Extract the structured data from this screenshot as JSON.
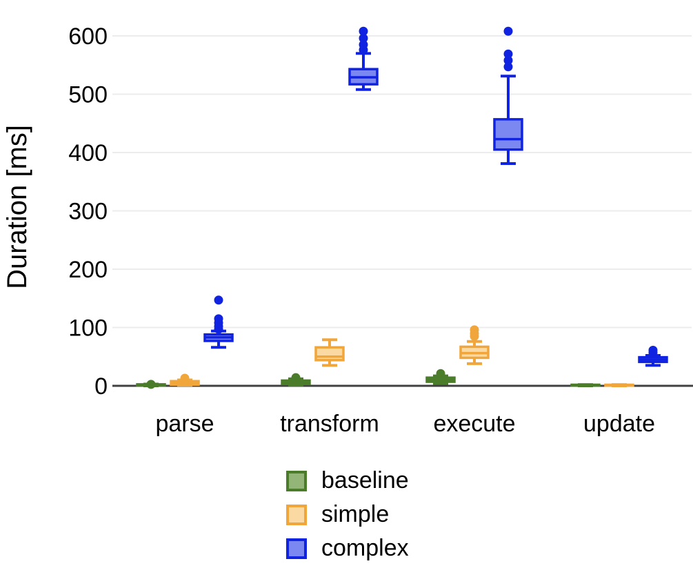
{
  "chart_data": {
    "type": "boxplot",
    "title": "",
    "ylabel": "Duration [ms]",
    "xlabel": "",
    "ylim": [
      0,
      640
    ],
    "yticks": [
      0,
      100,
      200,
      300,
      400,
      500,
      600
    ],
    "grid": "horizontal",
    "categories": [
      "parse",
      "transform",
      "execute",
      "update"
    ],
    "series": [
      {
        "name": "baseline",
        "border_color": "#4a7c2a",
        "fill_color": "#93b578",
        "boxes": [
          {
            "low": 0,
            "q1": 0.5,
            "median": 1.5,
            "q3": 2.5,
            "high": 3,
            "outliers": [
              2.5
            ]
          },
          {
            "low": 1,
            "q1": 3,
            "median": 5,
            "q3": 9,
            "high": 12,
            "outliers": [
              14
            ]
          },
          {
            "low": 4,
            "q1": 7,
            "median": 10,
            "q3": 14,
            "high": 17,
            "outliers": [
              21
            ]
          },
          {
            "low": 0,
            "q1": 0.3,
            "median": 1,
            "q3": 1.8,
            "high": 2,
            "outliers": []
          }
        ]
      },
      {
        "name": "simple",
        "border_color": "#f0a63a",
        "fill_color": "#fbd9a2",
        "boxes": [
          {
            "low": 1,
            "q1": 2,
            "median": 4.5,
            "q3": 8,
            "high": 10,
            "outliers": [
              13
            ]
          },
          {
            "low": 35,
            "q1": 44,
            "median": 50,
            "q3": 66,
            "high": 79,
            "outliers": []
          },
          {
            "low": 38,
            "q1": 48,
            "median": 56,
            "q3": 67,
            "high": 76,
            "outliers": [
              85,
              90,
              96
            ]
          },
          {
            "low": 0,
            "q1": 0.3,
            "median": 1,
            "q3": 1.8,
            "high": 2,
            "outliers": []
          }
        ]
      },
      {
        "name": "complex",
        "border_color": "#1023e0",
        "fill_color": "#7c88f2",
        "boxes": [
          {
            "low": 66,
            "q1": 77,
            "median": 83,
            "q3": 88,
            "high": 94,
            "outliers": [
              97,
              102,
              108,
              115,
              147
            ]
          },
          {
            "low": 508,
            "q1": 517,
            "median": 529,
            "q3": 543,
            "high": 570,
            "outliers": [
              576,
              585,
              596,
              608
            ]
          },
          {
            "low": 381,
            "q1": 405,
            "median": 423,
            "q3": 457,
            "high": 531,
            "outliers": [
              547,
              558,
              569,
              608
            ]
          },
          {
            "low": 35,
            "q1": 41,
            "median": 45,
            "q3": 49,
            "high": 52,
            "outliers": [
              57,
              61
            ]
          }
        ]
      }
    ],
    "legend": {
      "position": "bottom",
      "entries": [
        "baseline",
        "simple",
        "complex"
      ]
    },
    "colors": {
      "axis_line": "#404040",
      "gridline": "#ececec",
      "text": "#000000",
      "background": "#ffffff"
    }
  }
}
